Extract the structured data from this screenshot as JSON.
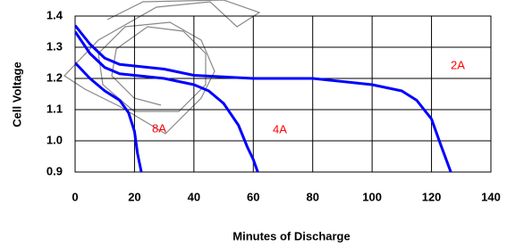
{
  "chart_data": {
    "type": "line",
    "x_label": "Minutes of Discharge",
    "y_label": "Cell Voltage",
    "xlim": [
      0,
      140
    ],
    "xticks": [
      0,
      20,
      40,
      60,
      80,
      100,
      120,
      140
    ],
    "ylim": [
      0.9,
      1.4
    ],
    "yticks": [
      0.9,
      {
        "value": 1,
        "label": "1.0"
      },
      1.1,
      1.2,
      1.3,
      1.4
    ],
    "grid": true,
    "label_color": "#ff0000",
    "series": [
      {
        "name": "2A",
        "color": "#0000ff",
        "x": [
          0,
          5,
          10,
          15,
          20,
          30,
          40,
          60,
          80,
          100,
          110,
          115,
          120,
          123,
          126.5
        ],
        "values": [
          1.37,
          1.31,
          1.265,
          1.245,
          1.24,
          1.23,
          1.21,
          1.2,
          1.2,
          1.18,
          1.16,
          1.13,
          1.07,
          0.99,
          0.9
        ]
      },
      {
        "name": "4A",
        "color": "#0000ff",
        "x": [
          0,
          5,
          10,
          15,
          20,
          30,
          40,
          45,
          50,
          55,
          58,
          60,
          61.5
        ],
        "values": [
          1.35,
          1.28,
          1.235,
          1.215,
          1.21,
          1.2,
          1.18,
          1.16,
          1.12,
          1.05,
          0.98,
          0.94,
          0.9
        ]
      },
      {
        "name": "8A",
        "color": "#0000ff",
        "x": [
          0,
          5,
          10,
          15,
          18,
          20,
          21,
          22.3
        ],
        "values": [
          1.25,
          1.2,
          1.16,
          1.13,
          1.09,
          1.03,
          0.96,
          0.9
        ]
      }
    ]
  }
}
